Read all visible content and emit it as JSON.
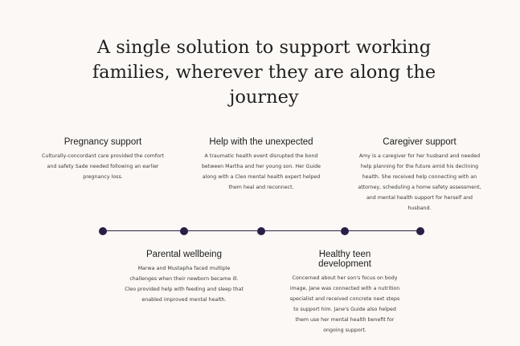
{
  "headline": "A single solution to support working families, wherever they are along the journey",
  "colors": {
    "background": "#fcf8f5",
    "timeline": "#2b1d45"
  },
  "cards": [
    {
      "title": "Pregnancy support",
      "body": "Culturally-concordant care provided the comfort and safety Sade needed following an earlier pregnancy loss."
    },
    {
      "title": "Help with the unexpected",
      "body": "A traumatic health event disrupted the bond between Martha and her young son. Her Guide along with a Cleo mental health expert helped them heal and reconnect."
    },
    {
      "title": "Caregiver support",
      "body": "Amy is a caregiver for her husband and needed help planning for the future amid his declining health. She received help connecting with an attorney, scheduling a home safety assessment, and mental health support for herself and husband."
    },
    {
      "title": "Parental wellbeing",
      "body": "Marwa and Mustapha faced multiple challenges when their newborn became ill. Cleo provided help with feeding and sleep that enabled improved mental health."
    },
    {
      "title": "Healthy teen development",
      "body": "Concerned about her son's focus on body image, Jane was connected with a nutrition specialist and received concrete next steps to support him. Jane's Guide also helped them use her mental health benefit for ongoing support."
    }
  ]
}
